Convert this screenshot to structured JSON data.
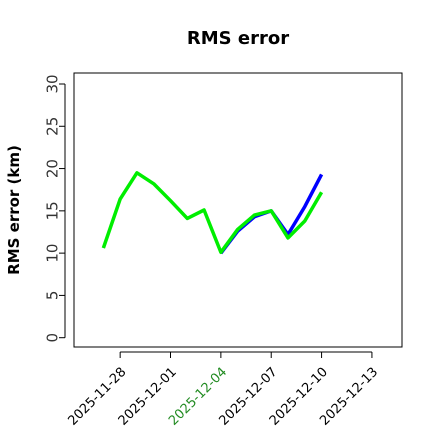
{
  "chart_data": {
    "type": "line",
    "title": "RMS error",
    "y_label": "RMS error (km)",
    "x": [
      "2025-11-27",
      "2025-11-28",
      "2025-11-29",
      "2025-11-30",
      "2025-12-01",
      "2025-12-02",
      "2025-12-03",
      "2025-12-04",
      "2025-12-05",
      "2025-12-06",
      "2025-12-07",
      "2025-12-08",
      "2025-12-09",
      "2025-12-10"
    ],
    "series": [
      {
        "color": "#0000ff",
        "values": [
          null,
          null,
          null,
          null,
          null,
          null,
          null,
          10.0,
          12.6,
          14.3,
          15.0,
          12.2,
          15.5,
          19.3
        ]
      },
      {
        "color": "#00ee00",
        "values": [
          10.6,
          16.4,
          19.5,
          18.2,
          16.2,
          14.1,
          15.1,
          10.1,
          12.8,
          14.5,
          15.0,
          11.8,
          13.8,
          17.2
        ]
      }
    ],
    "xlim": [
      "2025-11-25T06:00",
      "2025-12-14T19:00"
    ],
    "xticks": [
      "2025-11-28",
      "2025-12-01",
      "2025-12-04",
      "2025-12-07",
      "2025-12-10",
      "2025-12-13"
    ],
    "highlight_xtick": "2025-12-04",
    "highlight_color": "#228b22",
    "ylim": [
      -1.1,
      31.3
    ],
    "yticks": [
      0,
      5,
      10,
      15,
      20,
      25,
      30
    ]
  }
}
